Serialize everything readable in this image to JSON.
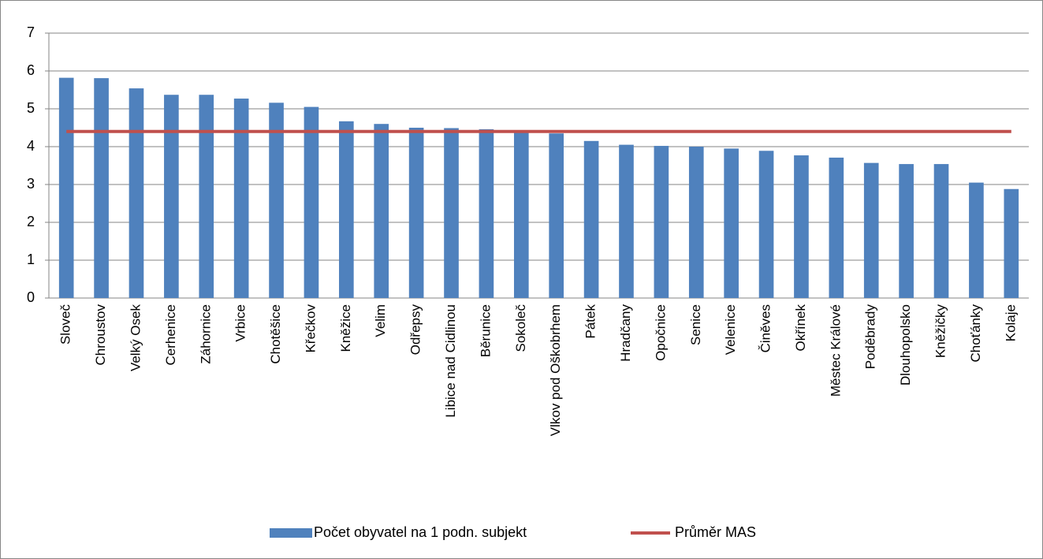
{
  "chart_data": {
    "type": "bar",
    "categories": [
      "Sloveč",
      "Chroustov",
      "Velký Osek",
      "Cerhenice",
      "Záhornice",
      "Vrbice",
      "Chotěšice",
      "Křečkov",
      "Kněžice",
      "Velim",
      "Odřepsy",
      "Libice nad Cidlinou",
      "Běrunice",
      "Sokoleč",
      "Vlkov pod Oškobrhem",
      "Pátek",
      "Hradčany",
      "Opočnice",
      "Senice",
      "Velenice",
      "Činěves",
      "Okřínek",
      "Městec Králové",
      "Poděbrady",
      "Dlouhopolsko",
      "Kněžičky",
      "Choťánky",
      "Kolaje"
    ],
    "series": [
      {
        "name": "Počet obyvatel na 1 podn. subjekt",
        "type": "bar",
        "color": "#4f81bd",
        "values": [
          5.82,
          5.81,
          5.54,
          5.37,
          5.37,
          5.27,
          5.16,
          5.05,
          4.67,
          4.6,
          4.5,
          4.49,
          4.46,
          4.4,
          4.35,
          4.15,
          4.05,
          4.02,
          4.0,
          3.95,
          3.89,
          3.77,
          3.71,
          3.57,
          3.54,
          3.54,
          3.05,
          2.88
        ]
      },
      {
        "name": "Průměr MAS",
        "type": "line",
        "color": "#c0504d",
        "values": [
          4.4,
          4.4,
          4.4,
          4.4,
          4.4,
          4.4,
          4.4,
          4.4,
          4.4,
          4.4,
          4.4,
          4.4,
          4.4,
          4.4,
          4.4,
          4.4,
          4.4,
          4.4,
          4.4,
          4.4,
          4.4,
          4.4,
          4.4,
          4.4,
          4.4,
          4.4,
          4.4,
          4.4
        ]
      }
    ],
    "ylim": [
      0,
      7
    ],
    "yticks": [
      0,
      1,
      2,
      3,
      4,
      5,
      6,
      7
    ],
    "grid": true,
    "legend": "bottom"
  }
}
